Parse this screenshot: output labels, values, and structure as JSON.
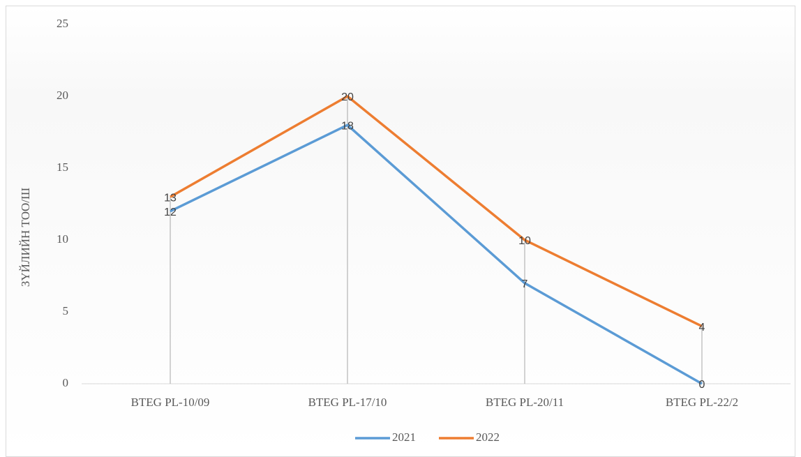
{
  "chart_data": {
    "type": "line",
    "y_label": "ЗҮЙЛИЙН ТОО/Ш",
    "categories": [
      "BTEG PL-10/09",
      "BTEG PL-17/10",
      "BTEG PL-20/11",
      "BTEG PL-22/2"
    ],
    "series": [
      {
        "name": "2021",
        "color": "#5b9bd5",
        "values": [
          12,
          18,
          7,
          0
        ]
      },
      {
        "name": "2022",
        "color": "#ed7d31",
        "values": [
          13,
          20,
          10,
          4
        ]
      }
    ],
    "ylim": [
      0,
      25
    ],
    "yticks": [
      0,
      5,
      10,
      15,
      20,
      25
    ],
    "drop_lines": true,
    "data_labels": true,
    "legend": "bottom"
  }
}
